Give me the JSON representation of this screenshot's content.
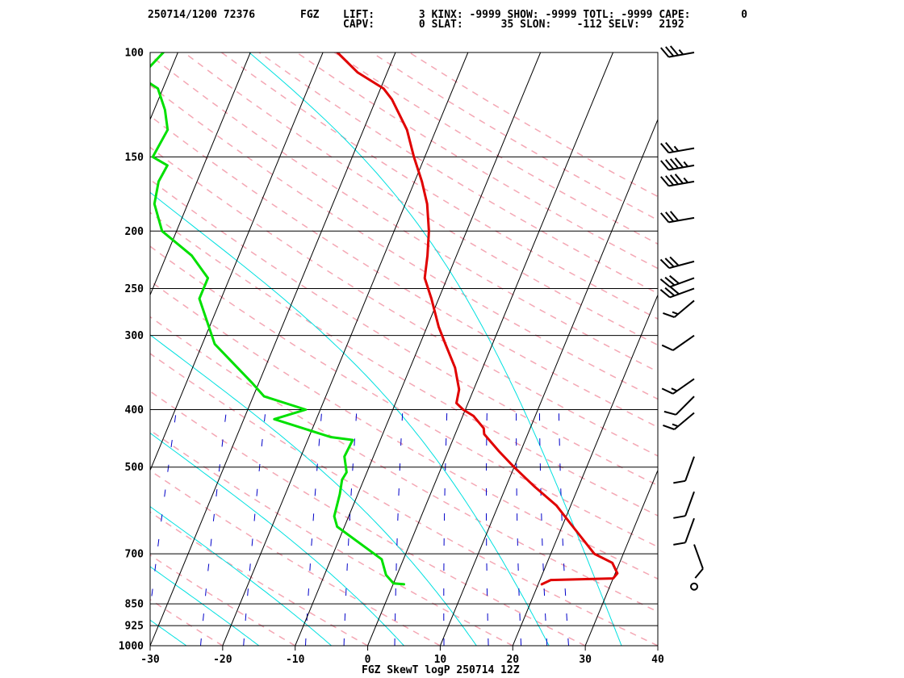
{
  "header": {
    "line1_left": "250714/1200 72376",
    "station": "FGZ",
    "line1_indices": "LIFT:       3 KINX: -9999 SHOW: -9999 TOTL: -9999 CAPE:        0",
    "line2_indices": "CAPV:       0 SLAT:      35 SLON:    -112 SELV:   2192"
  },
  "footer_title": "FGZ SkewT logP 250714 12Z",
  "colors": {
    "temperature": "#e00000",
    "dewpoint": "#00e000",
    "isotherm": "#000000",
    "dry_adiabat": "#f4a7b4",
    "moist_adiabat": "#00e0e0",
    "mixing_ratio": "#0000c8",
    "wind_barb": "#000000"
  },
  "chart_data": {
    "type": "line",
    "subtype": "skewT-logP",
    "title": "FGZ SkewT logP 250714 12Z",
    "x_ticks": [
      -30,
      -20,
      -10,
      0,
      10,
      20,
      30,
      40
    ],
    "xlim": [
      -30,
      40
    ],
    "p_ticks": [
      100,
      150,
      200,
      250,
      300,
      400,
      500,
      700,
      850,
      925,
      1000
    ],
    "plim": [
      1000,
      100
    ],
    "isotherms": [
      -110,
      -100,
      -90,
      -80,
      -70,
      -60,
      -50,
      -40,
      -30,
      -20,
      -10,
      0,
      10,
      20,
      30,
      40
    ],
    "dry_adiabats": [
      -30,
      -20,
      -10,
      0,
      10,
      20,
      30,
      40,
      50,
      60,
      70,
      80,
      90,
      100,
      110,
      120,
      130,
      140,
      150,
      160,
      170,
      180,
      190,
      200
    ],
    "moist_adiabats": [
      -25,
      -15,
      -5,
      5,
      15,
      25,
      35
    ],
    "mixing_ratios": [
      0.1,
      0.3,
      0.6,
      1,
      2,
      3,
      5,
      8,
      12,
      16,
      20,
      24
    ],
    "series": [
      {
        "name": "temperature",
        "points": [
          [
            788,
            20.5
          ],
          [
            775,
            21.5
          ],
          [
            770,
            30.0
          ],
          [
            755,
            30.3
          ],
          [
            725,
            29.0
          ],
          [
            700,
            26.0
          ],
          [
            630,
            21.5
          ],
          [
            580,
            18.0
          ],
          [
            540,
            14.0
          ],
          [
            500,
            10.0
          ],
          [
            470,
            7.0
          ],
          [
            440,
            4.0
          ],
          [
            430,
            3.6
          ],
          [
            410,
            1.5
          ],
          [
            400,
            -0.3
          ],
          [
            390,
            -1.6
          ],
          [
            370,
            -2.0
          ],
          [
            340,
            -3.8
          ],
          [
            310,
            -6.5
          ],
          [
            290,
            -8.4
          ],
          [
            260,
            -11.0
          ],
          [
            240,
            -13.1
          ],
          [
            220,
            -14.0
          ],
          [
            200,
            -15.2
          ],
          [
            180,
            -17.0
          ],
          [
            165,
            -19.0
          ],
          [
            150,
            -21.5
          ],
          [
            135,
            -24.0
          ],
          [
            120,
            -27.8
          ],
          [
            115,
            -29.6
          ],
          [
            108,
            -34.1
          ],
          [
            100,
            -38.0
          ]
        ]
      },
      {
        "name": "dewpoint",
        "points": [
          [
            788,
            1.5
          ],
          [
            785,
            0.0
          ],
          [
            760,
            -1.5
          ],
          [
            715,
            -3.0
          ],
          [
            630,
            -11.0
          ],
          [
            605,
            -12.0
          ],
          [
            555,
            -12.5
          ],
          [
            525,
            -13.0
          ],
          [
            510,
            -12.8
          ],
          [
            480,
            -14.0
          ],
          [
            450,
            -13.8
          ],
          [
            445,
            -17.0
          ],
          [
            415,
            -25.8
          ],
          [
            400,
            -22.0
          ],
          [
            380,
            -28.5
          ],
          [
            360,
            -31.0
          ],
          [
            310,
            -38.3
          ],
          [
            260,
            -43.0
          ],
          [
            240,
            -43.0
          ],
          [
            220,
            -46.5
          ],
          [
            200,
            -52.0
          ],
          [
            180,
            -54.6
          ],
          [
            165,
            -55.3
          ],
          [
            155,
            -55.0
          ],
          [
            150,
            -57.5
          ],
          [
            135,
            -57.0
          ],
          [
            125,
            -58.5
          ],
          [
            115,
            -60.7
          ],
          [
            110,
            -63.8
          ],
          [
            100,
            -62.0
          ]
        ]
      }
    ],
    "wind_barbs": [
      {
        "p": 100,
        "dir": 260,
        "speed": 35
      },
      {
        "p": 145,
        "dir": 260,
        "speed": 25
      },
      {
        "p": 155,
        "dir": 260,
        "speed": 45
      },
      {
        "p": 165,
        "dir": 260,
        "speed": 45
      },
      {
        "p": 190,
        "dir": 260,
        "speed": 30
      },
      {
        "p": 225,
        "dir": 255,
        "speed": 30
      },
      {
        "p": 240,
        "dir": 250,
        "speed": 30
      },
      {
        "p": 250,
        "dir": 250,
        "speed": 30
      },
      {
        "p": 262,
        "dir": 230,
        "speed": 15
      },
      {
        "p": 300,
        "dir": 235,
        "speed": 10
      },
      {
        "p": 355,
        "dir": 235,
        "speed": 15
      },
      {
        "p": 380,
        "dir": 225,
        "speed": 10
      },
      {
        "p": 405,
        "dir": 230,
        "speed": 15
      },
      {
        "p": 480,
        "dir": 200,
        "speed": 10
      },
      {
        "p": 550,
        "dir": 200,
        "speed": 10
      },
      {
        "p": 610,
        "dir": 200,
        "speed": 10
      },
      {
        "p": 675,
        "dir": 160,
        "speed": 10
      },
      {
        "p": 795,
        "dir": 0,
        "speed": 0
      }
    ]
  }
}
